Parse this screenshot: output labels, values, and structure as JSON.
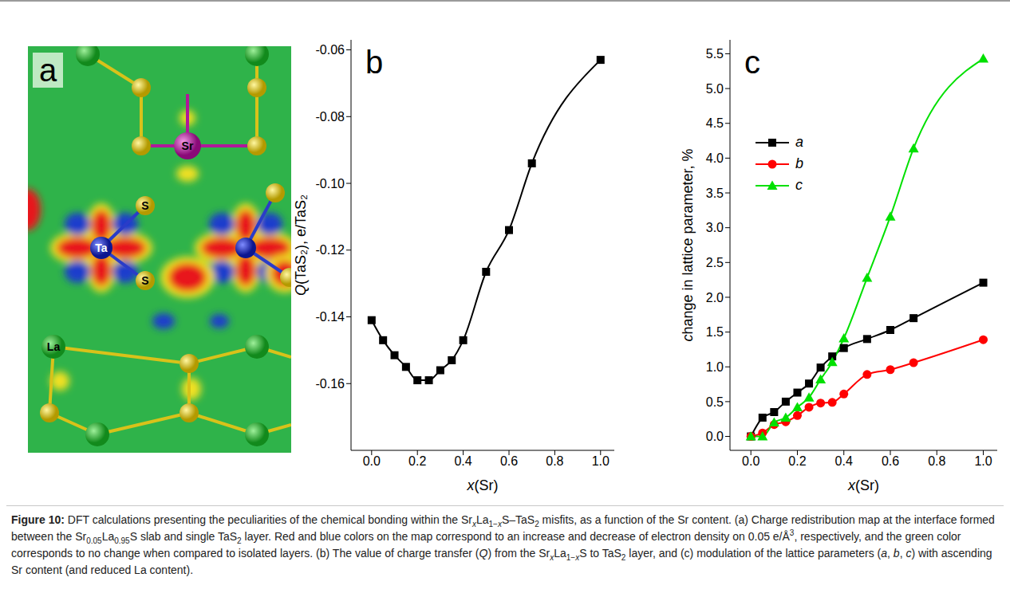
{
  "panel_a": {
    "letter": "a",
    "atom_labels": [
      "Sr",
      "S",
      "Ta",
      "S",
      "La"
    ]
  },
  "chart_data": [
    {
      "type": "line",
      "annotations": [
        "b"
      ],
      "xlabel": "x(Sr)",
      "ylabel": "Q(TaS₂), e/TaS₂",
      "x": [
        0,
        0.05,
        0.1,
        0.15,
        0.2,
        0.25,
        0.3,
        0.35,
        0.4,
        0.5,
        0.6,
        0.7,
        1.0
      ],
      "values": [
        -0.141,
        -0.147,
        -0.1515,
        -0.155,
        -0.159,
        -0.159,
        -0.156,
        -0.153,
        -0.147,
        -0.1265,
        -0.114,
        -0.094,
        -0.063
      ],
      "color": "#000000",
      "marker": "square",
      "line_style": "solid",
      "xlim": [
        -0.09,
        1.06
      ],
      "xticks": [
        {
          "value": 0,
          "label": "0.0"
        },
        0.2,
        0.4,
        0.6,
        0.8,
        {
          "value": 1,
          "label": "1.0"
        }
      ],
      "ylim": [
        -0.18,
        -0.057
      ],
      "yticks": [
        -0.16,
        -0.14,
        -0.12,
        {
          "value": -0.1,
          "label": "-0.10"
        },
        -0.08,
        -0.06
      ]
    },
    {
      "type": "line",
      "annotations": [
        "c"
      ],
      "xlabel": "x(Sr)",
      "ylabel": "change in lattice parameter, %",
      "x": [
        0,
        0.05,
        0.1,
        0.15,
        0.2,
        0.25,
        0.3,
        0.35,
        0.4,
        0.5,
        0.6,
        0.7,
        1.0
      ],
      "series": [
        {
          "name": "a",
          "color": "#000000",
          "marker": "square",
          "values": [
            0,
            0.27,
            0.35,
            0.5,
            0.63,
            0.76,
            0.99,
            1.15,
            1.27,
            1.4,
            1.53,
            1.7,
            2.21
          ]
        },
        {
          "name": "b",
          "color": "#ff0000",
          "marker": "circle",
          "values": [
            0,
            0.05,
            0.17,
            0.21,
            0.3,
            0.42,
            0.48,
            0.49,
            0.61,
            0.89,
            0.96,
            1.06,
            1.39
          ]
        },
        {
          "name": "c",
          "color": "#00e000",
          "marker": "triangle",
          "values": [
            0,
            0,
            0.2,
            0.27,
            0.42,
            0.56,
            0.82,
            1.07,
            1.41,
            2.28,
            3.16,
            4.14,
            5.43
          ]
        }
      ],
      "legend": "upper left",
      "xlim": [
        -0.09,
        1.06
      ],
      "xticks": [
        {
          "value": 0,
          "label": "0.0"
        },
        0.2,
        0.4,
        0.6,
        0.8,
        {
          "value": 1,
          "label": "1.0"
        }
      ],
      "ylim": [
        -0.2,
        5.7
      ],
      "yticks": [
        {
          "value": 0,
          "label": "0.0"
        },
        0.5,
        {
          "value": 1,
          "label": "1.0"
        },
        1.5,
        {
          "value": 2,
          "label": "2.0"
        },
        2.5,
        {
          "value": 3,
          "label": "3.0"
        },
        3.5,
        {
          "value": 4,
          "label": "4.0"
        },
        4.5,
        {
          "value": 5,
          "label": "5.0"
        },
        5.5
      ]
    }
  ],
  "caption": [
    {
      "text": "Figure 10:",
      "style": "bold"
    },
    {
      "text": " DFT calculations presenting the peculiarities of the chemical bonding within the Sr"
    },
    {
      "text": "x",
      "style": "subitalic"
    },
    {
      "text": "La"
    },
    {
      "text": "1−",
      "style": "sub"
    },
    {
      "text": "x",
      "style": "subitalic"
    },
    {
      "text": "S–TaS"
    },
    {
      "text": "2",
      "style": "sub"
    },
    {
      "text": " misfits, as a function of the Sr content. (a) Charge redistribution map at the interface formed between the Sr"
    },
    {
      "text": "0.05",
      "style": "sub"
    },
    {
      "text": "La"
    },
    {
      "text": "0.95",
      "style": "sub"
    },
    {
      "text": "S slab and single TaS"
    },
    {
      "text": "2",
      "style": "sub"
    },
    {
      "text": " layer. Red and blue colors on the map correspond to an increase and decrease of electron density on 0.05 e/Å"
    },
    {
      "text": "3",
      "style": "sup"
    },
    {
      "text": ", respectively, and the green color corresponds to no change when compared to isolated layers. (b) The value of charge transfer ("
    },
    {
      "text": "Q",
      "style": "italic"
    },
    {
      "text": ") from the Sr"
    },
    {
      "text": "x",
      "style": "subitalic"
    },
    {
      "text": "La"
    },
    {
      "text": "1−",
      "style": "sub"
    },
    {
      "text": "x",
      "style": "subitalic"
    },
    {
      "text": "S to TaS"
    },
    {
      "text": "2",
      "style": "sub"
    },
    {
      "text": " layer, and (c) modulation of the lattice parameters ("
    },
    {
      "text": "a",
      "style": "italic"
    },
    {
      "text": ", "
    },
    {
      "text": "b",
      "style": "italic"
    },
    {
      "text": ", "
    },
    {
      "text": "c",
      "style": "italic"
    },
    {
      "text": ") with ascending Sr content (and reduced La content)."
    }
  ]
}
